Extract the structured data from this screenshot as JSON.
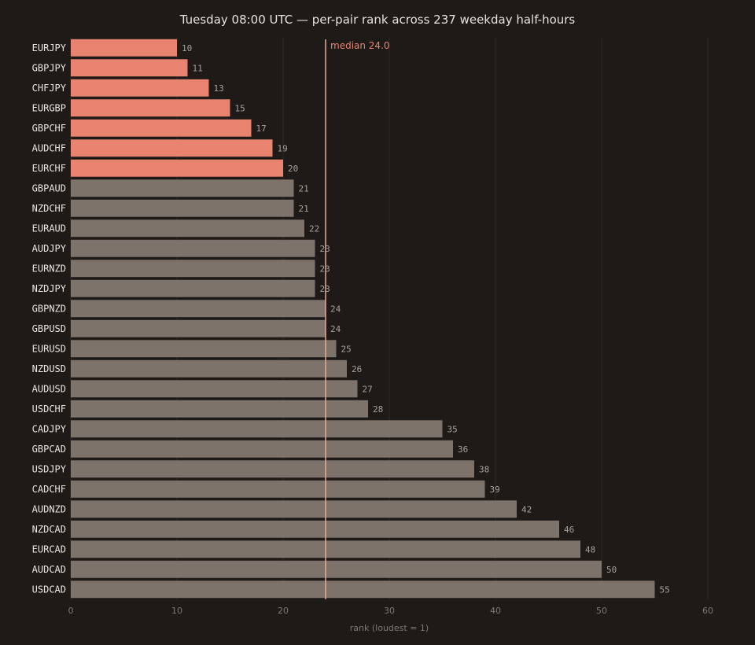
{
  "chart_data": {
    "type": "bar",
    "orientation": "horizontal",
    "title": "Tuesday 08:00 UTC — per-pair rank across 237 weekday half-hours",
    "xlabel": "rank (loudest = 1)",
    "ylabel": "",
    "xlim": [
      0,
      60
    ],
    "xticks": [
      0,
      10,
      20,
      30,
      40,
      50,
      60
    ],
    "grid": "vertical",
    "categories": [
      "EURJPY",
      "GBPJPY",
      "CHFJPY",
      "EURGBP",
      "GBPCHF",
      "AUDCHF",
      "EURCHF",
      "GBPAUD",
      "NZDCHF",
      "EURAUD",
      "AUDJPY",
      "EURNZD",
      "NZDJPY",
      "GBPNZD",
      "GBPUSD",
      "EURUSD",
      "NZDUSD",
      "AUDUSD",
      "USDCHF",
      "CADJPY",
      "GBPCAD",
      "USDJPY",
      "CADCHF",
      "AUDNZD",
      "NZDCAD",
      "EURCAD",
      "AUDCAD",
      "USDCAD"
    ],
    "values": [
      10,
      11,
      13,
      15,
      17,
      19,
      20,
      21,
      21,
      22,
      23,
      23,
      23,
      24,
      24,
      25,
      26,
      27,
      28,
      35,
      36,
      38,
      39,
      42,
      46,
      48,
      50,
      55
    ],
    "highlighted": [
      "EURJPY",
      "GBPJPY",
      "CHFJPY",
      "EURGBP",
      "GBPCHF",
      "AUDCHF",
      "EURCHF"
    ],
    "reference_line": {
      "value": 24.0,
      "label": "median 24.0"
    },
    "colors": {
      "background": "#1d1a18",
      "highlight_bar": "#e8836f",
      "default_bar": "#7d736b",
      "median_line": "#e8a996",
      "grid": "#2f2b28"
    }
  }
}
